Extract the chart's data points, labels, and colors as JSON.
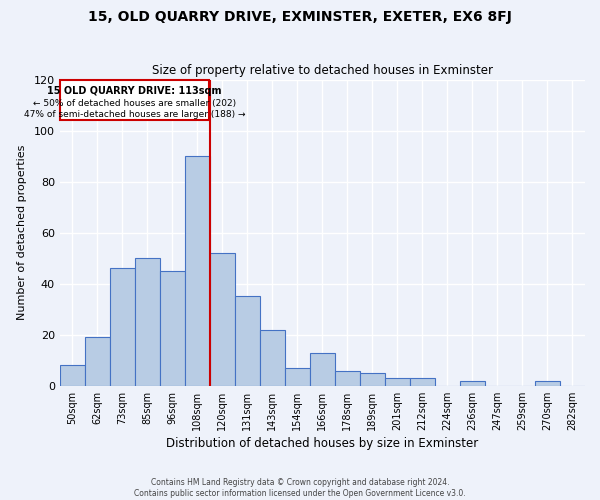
{
  "title": "15, OLD QUARRY DRIVE, EXMINSTER, EXETER, EX6 8FJ",
  "subtitle": "Size of property relative to detached houses in Exminster",
  "xlabel": "Distribution of detached houses by size in Exminster",
  "ylabel": "Number of detached properties",
  "bar_labels": [
    "50sqm",
    "62sqm",
    "73sqm",
    "85sqm",
    "96sqm",
    "108sqm",
    "120sqm",
    "131sqm",
    "143sqm",
    "154sqm",
    "166sqm",
    "178sqm",
    "189sqm",
    "201sqm",
    "212sqm",
    "224sqm",
    "236sqm",
    "247sqm",
    "259sqm",
    "270sqm",
    "282sqm"
  ],
  "bar_values": [
    8,
    19,
    46,
    50,
    45,
    90,
    52,
    35,
    22,
    7,
    13,
    6,
    5,
    3,
    3,
    0,
    2,
    0,
    0,
    2,
    0
  ],
  "bar_color": "#b8cce4",
  "bar_edge_color": "#4472c4",
  "property_line_label": "15 OLD QUARRY DRIVE: 113sqm",
  "annotation_line1": "← 50% of detached houses are smaller (202)",
  "annotation_line2": "47% of semi-detached houses are larger (188) →",
  "annotation_box_color": "#ffffff",
  "annotation_box_edge": "#cc0000",
  "property_line_color": "#cc0000",
  "ylim": [
    0,
    120
  ],
  "footer1": "Contains HM Land Registry data © Crown copyright and database right 2024.",
  "footer2": "Contains public sector information licensed under the Open Government Licence v3.0.",
  "bg_color": "#eef2fa",
  "grid_color": "#ffffff"
}
